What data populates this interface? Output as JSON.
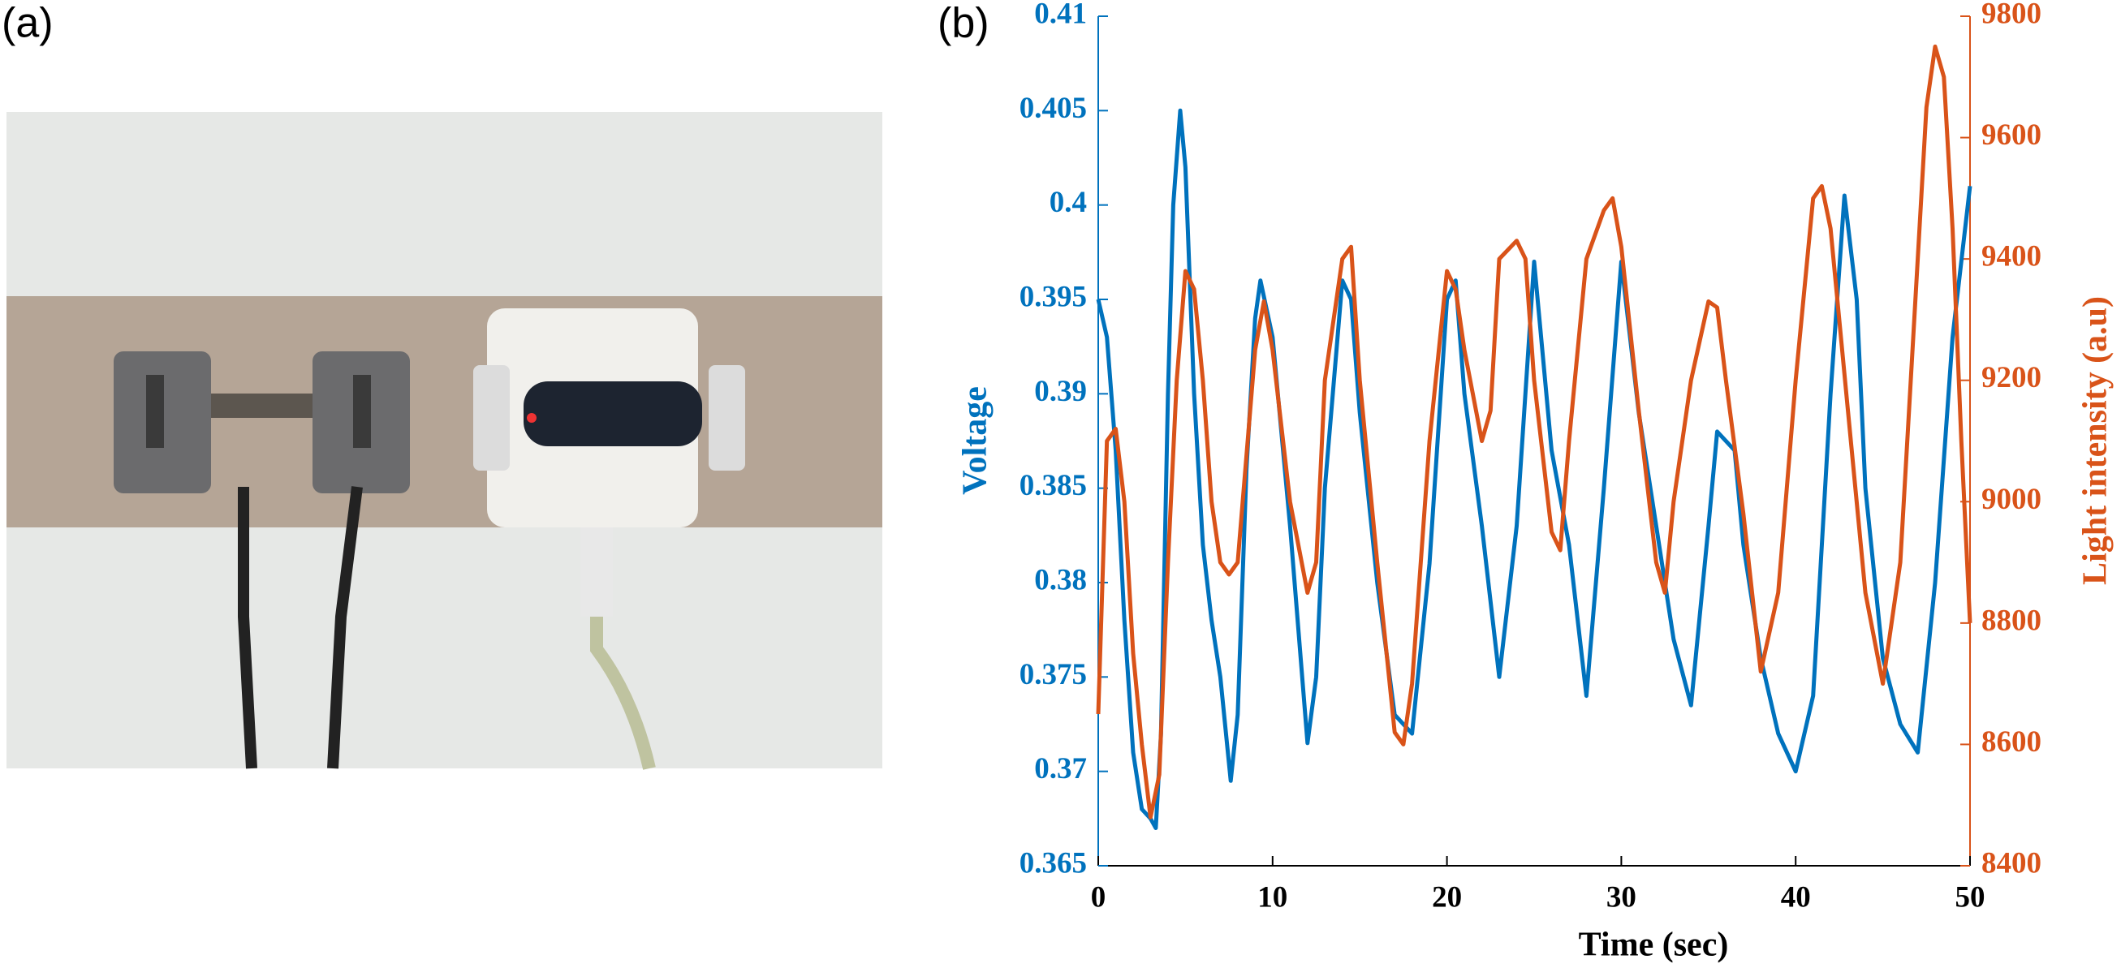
{
  "panel_labels": [
    "(a)",
    "(b)"
  ],
  "chart_data": {
    "type": "line",
    "xlabel": "Time (sec)",
    "ylabel": "Voltage",
    "y2label": "Light intensity (a.u)",
    "xlim": [
      0,
      50
    ],
    "xticks": [
      0,
      10,
      20,
      30,
      40,
      50
    ],
    "ylim": [
      0.365,
      0.41
    ],
    "yticks": [
      0.365,
      0.37,
      0.375,
      0.38,
      0.385,
      0.39,
      0.395,
      0.4,
      0.405,
      0.41
    ],
    "y2lim": [
      8400,
      9800
    ],
    "y2ticks": [
      8400,
      8600,
      8800,
      9000,
      9200,
      9400,
      9600,
      9800
    ],
    "series": [
      {
        "color": "#0072BD",
        "x": [
          0,
          0.5,
          1,
          1.5,
          2,
          2.5,
          3,
          3.3,
          3.6,
          4,
          4.3,
          4.7,
          5,
          5.5,
          6,
          6.5,
          7,
          7.6,
          8,
          8.5,
          9,
          9.3,
          10,
          11,
          12,
          12.5,
          13,
          14,
          14.5,
          15,
          16,
          17,
          18,
          19,
          20,
          20.5,
          21,
          22,
          23,
          24,
          25,
          26,
          27,
          28,
          29,
          30,
          31,
          32,
          33,
          34,
          35,
          35.5,
          36.5,
          37,
          38,
          39,
          40,
          41,
          42,
          42.8,
          43.5,
          44,
          45,
          46,
          47,
          48,
          49,
          50
        ],
        "values": [
          0.395,
          0.393,
          0.387,
          0.378,
          0.371,
          0.368,
          0.3675,
          0.367,
          0.372,
          0.39,
          0.4,
          0.405,
          0.402,
          0.39,
          0.382,
          0.378,
          0.375,
          0.3695,
          0.373,
          0.386,
          0.394,
          0.396,
          0.393,
          0.383,
          0.3715,
          0.375,
          0.385,
          0.396,
          0.395,
          0.389,
          0.38,
          0.373,
          0.372,
          0.381,
          0.395,
          0.396,
          0.39,
          0.383,
          0.375,
          0.383,
          0.397,
          0.387,
          0.382,
          0.374,
          0.385,
          0.397,
          0.389,
          0.383,
          0.377,
          0.3735,
          0.383,
          0.388,
          0.387,
          0.382,
          0.376,
          0.372,
          0.37,
          0.374,
          0.39,
          0.4005,
          0.395,
          0.385,
          0.376,
          0.3725,
          0.371,
          0.38,
          0.393,
          0.401
        ]
      },
      {
        "color": "#D95319",
        "axis": "y2",
        "x": [
          0,
          0.5,
          1,
          1.5,
          2,
          2.5,
          3,
          3.5,
          4,
          4.5,
          5,
          5.5,
          6,
          6.5,
          7,
          7.5,
          8,
          9,
          9.5,
          10,
          11,
          12,
          12.5,
          13,
          14,
          14.5,
          15,
          16,
          17,
          17.5,
          18,
          19,
          20,
          20.5,
          21,
          22,
          22.5,
          23,
          24,
          24.5,
          25,
          26,
          26.5,
          27,
          28,
          29,
          29.5,
          30,
          31,
          32,
          32.5,
          33,
          34,
          35,
          35.5,
          36,
          37,
          38,
          39,
          40,
          41,
          41.5,
          42,
          43,
          44,
          45,
          46,
          47,
          47.5,
          48,
          48.5,
          49,
          49.5,
          50
        ],
        "values": [
          8650,
          9100,
          9120,
          9000,
          8750,
          8600,
          8480,
          8550,
          8900,
          9200,
          9380,
          9350,
          9200,
          9000,
          8900,
          8880,
          8900,
          9250,
          9330,
          9250,
          9000,
          8850,
          8900,
          9200,
          9400,
          9420,
          9200,
          8900,
          8620,
          8600,
          8700,
          9100,
          9380,
          9350,
          9250,
          9100,
          9150,
          9400,
          9430,
          9400,
          9200,
          8950,
          8920,
          9100,
          9400,
          9480,
          9500,
          9420,
          9150,
          8900,
          8850,
          9000,
          9200,
          9330,
          9320,
          9200,
          8980,
          8720,
          8850,
          9200,
          9500,
          9520,
          9450,
          9150,
          8850,
          8700,
          8900,
          9400,
          9650,
          9750,
          9700,
          9450,
          9100,
          8800
        ]
      }
    ]
  }
}
